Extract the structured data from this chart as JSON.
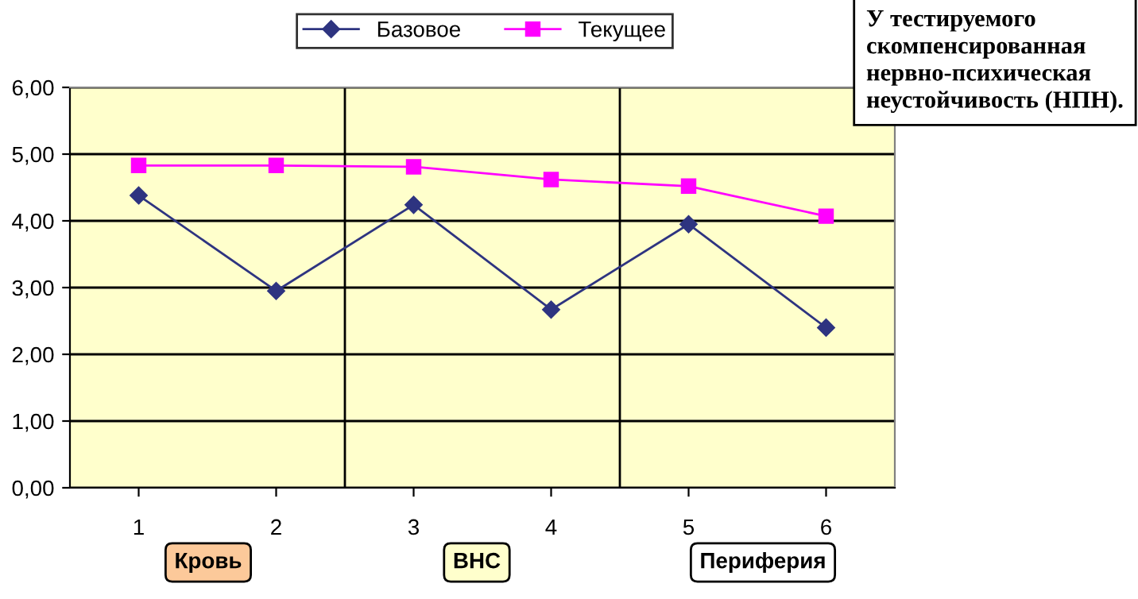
{
  "chart_data": {
    "type": "line",
    "x": [
      1,
      2,
      3,
      4,
      5,
      6
    ],
    "series": [
      {
        "name": "Базовое",
        "color": "#2e3480",
        "marker": "diamond",
        "values": [
          4.38,
          2.95,
          4.24,
          2.67,
          3.95,
          2.4
        ]
      },
      {
        "name": "Текущее",
        "color": "#ff00ff",
        "marker": "square",
        "values": [
          4.83,
          4.83,
          4.81,
          4.62,
          4.52,
          4.07
        ]
      }
    ],
    "xlim": [
      0.5,
      6.5
    ],
    "xticks": [
      1,
      2,
      3,
      4,
      5,
      6
    ],
    "ylim": [
      0,
      6
    ],
    "yticks": [
      {
        "value": 0,
        "label": "0,00"
      },
      {
        "value": 1,
        "label": "1,00"
      },
      {
        "value": 2,
        "label": "2,00"
      },
      {
        "value": 3,
        "label": "3,00"
      },
      {
        "value": 4,
        "label": "4,00"
      },
      {
        "value": 5,
        "label": "5,00"
      },
      {
        "value": 6,
        "label": "6,00"
      }
    ],
    "grid": "y",
    "legend": "top",
    "ref_lines": [
      {
        "axis": "x",
        "value": 2.5,
        "color": "#000000"
      },
      {
        "axis": "x",
        "value": 4.5,
        "color": "#000000"
      }
    ],
    "annotations": [
      "Кровь",
      "ВНС",
      "Периферия",
      "У тестируемого скомпенсированная нервно-психическая неустойчивость (НПН)."
    ]
  }
}
